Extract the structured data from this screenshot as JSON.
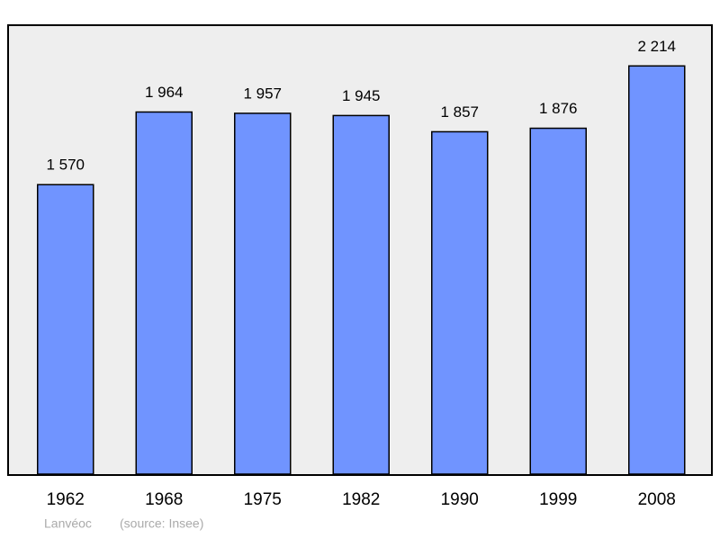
{
  "chart_data": {
    "type": "bar",
    "categories": [
      "1962",
      "1968",
      "1975",
      "1982",
      "1990",
      "1999",
      "2008"
    ],
    "values": [
      1570,
      1964,
      1957,
      1945,
      1857,
      1876,
      2214
    ],
    "value_labels": [
      "1 570",
      "1 964",
      "1 957",
      "1 945",
      "1 857",
      "1 876",
      "2 214"
    ],
    "color": "#7094ff",
    "ylim": [
      0,
      2435
    ],
    "place": "Lanvéoc",
    "source": "(source: Insee)"
  }
}
